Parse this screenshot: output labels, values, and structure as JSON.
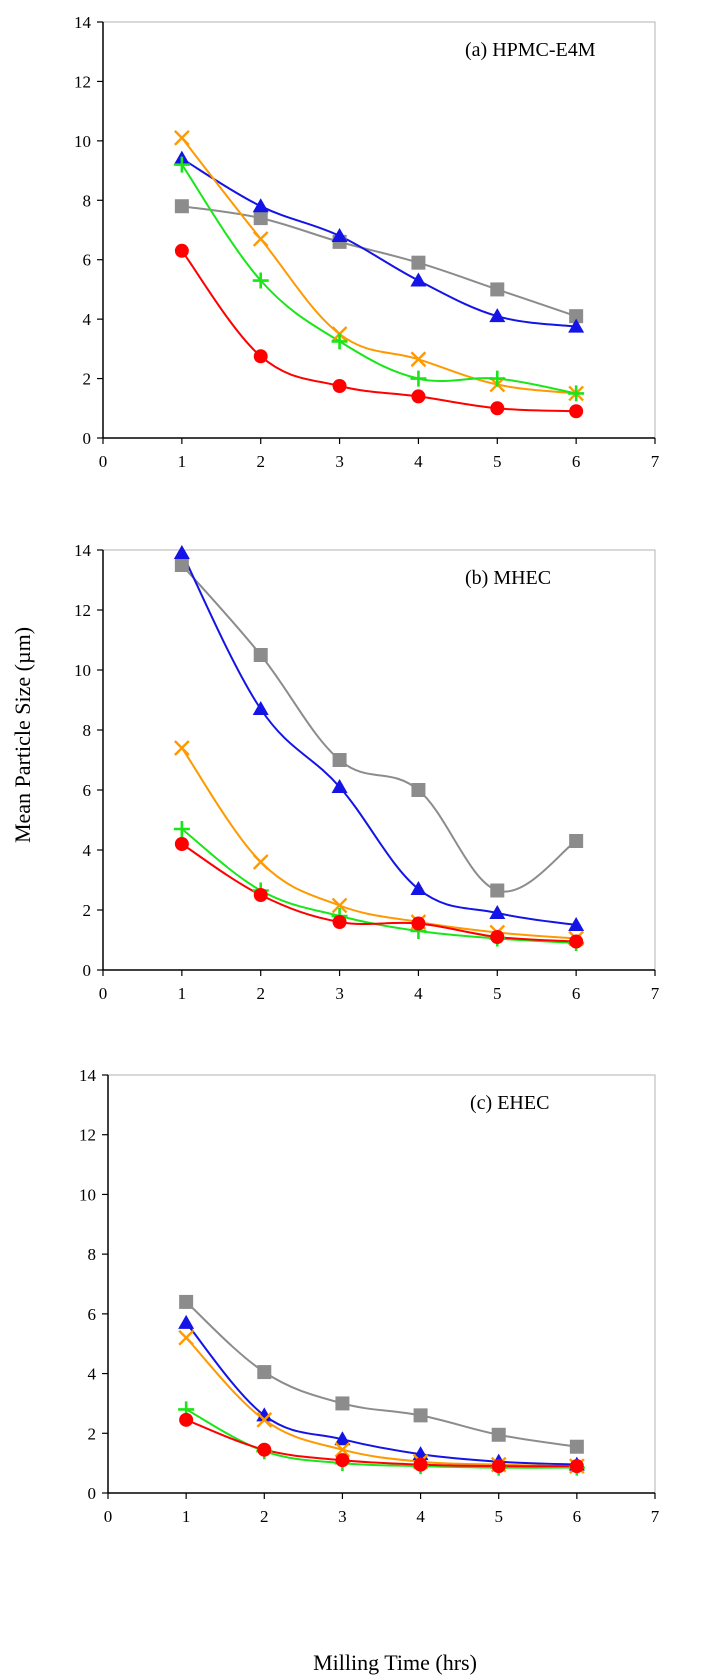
{
  "figure": {
    "ylabel": "Mean Particle Size (µm)",
    "xlabel": "Milling Time (hrs)"
  },
  "series_styles": [
    {
      "marker": "square",
      "color": "#8c8c8c"
    },
    {
      "marker": "triangle",
      "color": "#1414e6"
    },
    {
      "marker": "x",
      "color": "#ff9900"
    },
    {
      "marker": "plus",
      "color": "#19e619"
    },
    {
      "marker": "circle",
      "color": "#ff0000"
    }
  ],
  "chart_data": [
    {
      "type": "line",
      "panel_label": "(a) HPMC-E4M",
      "xlim": [
        0,
        7
      ],
      "ylim": [
        0,
        14
      ],
      "x_ticks": [
        "0",
        "1",
        "2",
        "3",
        "4",
        "5",
        "6",
        "7"
      ],
      "y_ticks": [
        "0",
        "2",
        "4",
        "6",
        "8",
        "10",
        "12",
        "14"
      ],
      "x": [
        1,
        2,
        3,
        4,
        5,
        6
      ],
      "series": [
        {
          "values": [
            7.8,
            7.4,
            6.6,
            5.9,
            5.0,
            4.1
          ]
        },
        {
          "values": [
            9.4,
            7.8,
            6.8,
            5.3,
            4.1,
            3.75
          ]
        },
        {
          "values": [
            10.1,
            6.7,
            3.5,
            2.65,
            1.8,
            1.5
          ]
        },
        {
          "values": [
            9.2,
            5.3,
            3.25,
            2.0,
            2.0,
            1.5
          ]
        },
        {
          "values": [
            6.3,
            2.75,
            1.75,
            1.4,
            1.0,
            0.9
          ]
        }
      ]
    },
    {
      "type": "line",
      "panel_label": "(b) MHEC",
      "xlim": [
        0,
        7
      ],
      "ylim": [
        0,
        14
      ],
      "x_ticks": [
        "0",
        "1",
        "2",
        "3",
        "4",
        "5",
        "6",
        "7"
      ],
      "y_ticks": [
        "0",
        "2",
        "4",
        "6",
        "8",
        "10",
        "12",
        "14"
      ],
      "x": [
        1,
        2,
        3,
        4,
        5,
        6
      ],
      "series": [
        {
          "values": [
            13.5,
            10.5,
            7.0,
            6.0,
            2.65,
            4.3
          ]
        },
        {
          "values": [
            13.9,
            8.7,
            6.1,
            2.7,
            1.9,
            1.5
          ]
        },
        {
          "values": [
            7.4,
            3.6,
            2.15,
            1.6,
            1.25,
            1.05
          ]
        },
        {
          "values": [
            4.7,
            2.65,
            1.8,
            1.3,
            1.05,
            0.9
          ]
        },
        {
          "values": [
            4.2,
            2.5,
            1.6,
            1.55,
            1.1,
            0.95
          ]
        }
      ]
    },
    {
      "type": "line",
      "panel_label": "(c) EHEC",
      "xlim": [
        0,
        7
      ],
      "ylim": [
        0,
        14
      ],
      "x_ticks": [
        "0",
        "1",
        "2",
        "3",
        "4",
        "5",
        "6",
        "7"
      ],
      "y_ticks": [
        "0",
        "2",
        "4",
        "6",
        "8",
        "10",
        "12",
        "14"
      ],
      "x": [
        1,
        2,
        3,
        4,
        5,
        6
      ],
      "series": [
        {
          "values": [
            6.4,
            4.05,
            3.0,
            2.6,
            1.95,
            1.55
          ]
        },
        {
          "values": [
            5.7,
            2.6,
            1.8,
            1.3,
            1.05,
            0.95
          ]
        },
        {
          "values": [
            5.2,
            2.45,
            1.45,
            1.05,
            0.95,
            0.9
          ]
        },
        {
          "values": [
            2.8,
            1.4,
            1.0,
            0.9,
            0.85,
            0.85
          ]
        },
        {
          "values": [
            2.45,
            1.45,
            1.1,
            0.95,
            0.9,
            0.9
          ]
        }
      ]
    }
  ]
}
